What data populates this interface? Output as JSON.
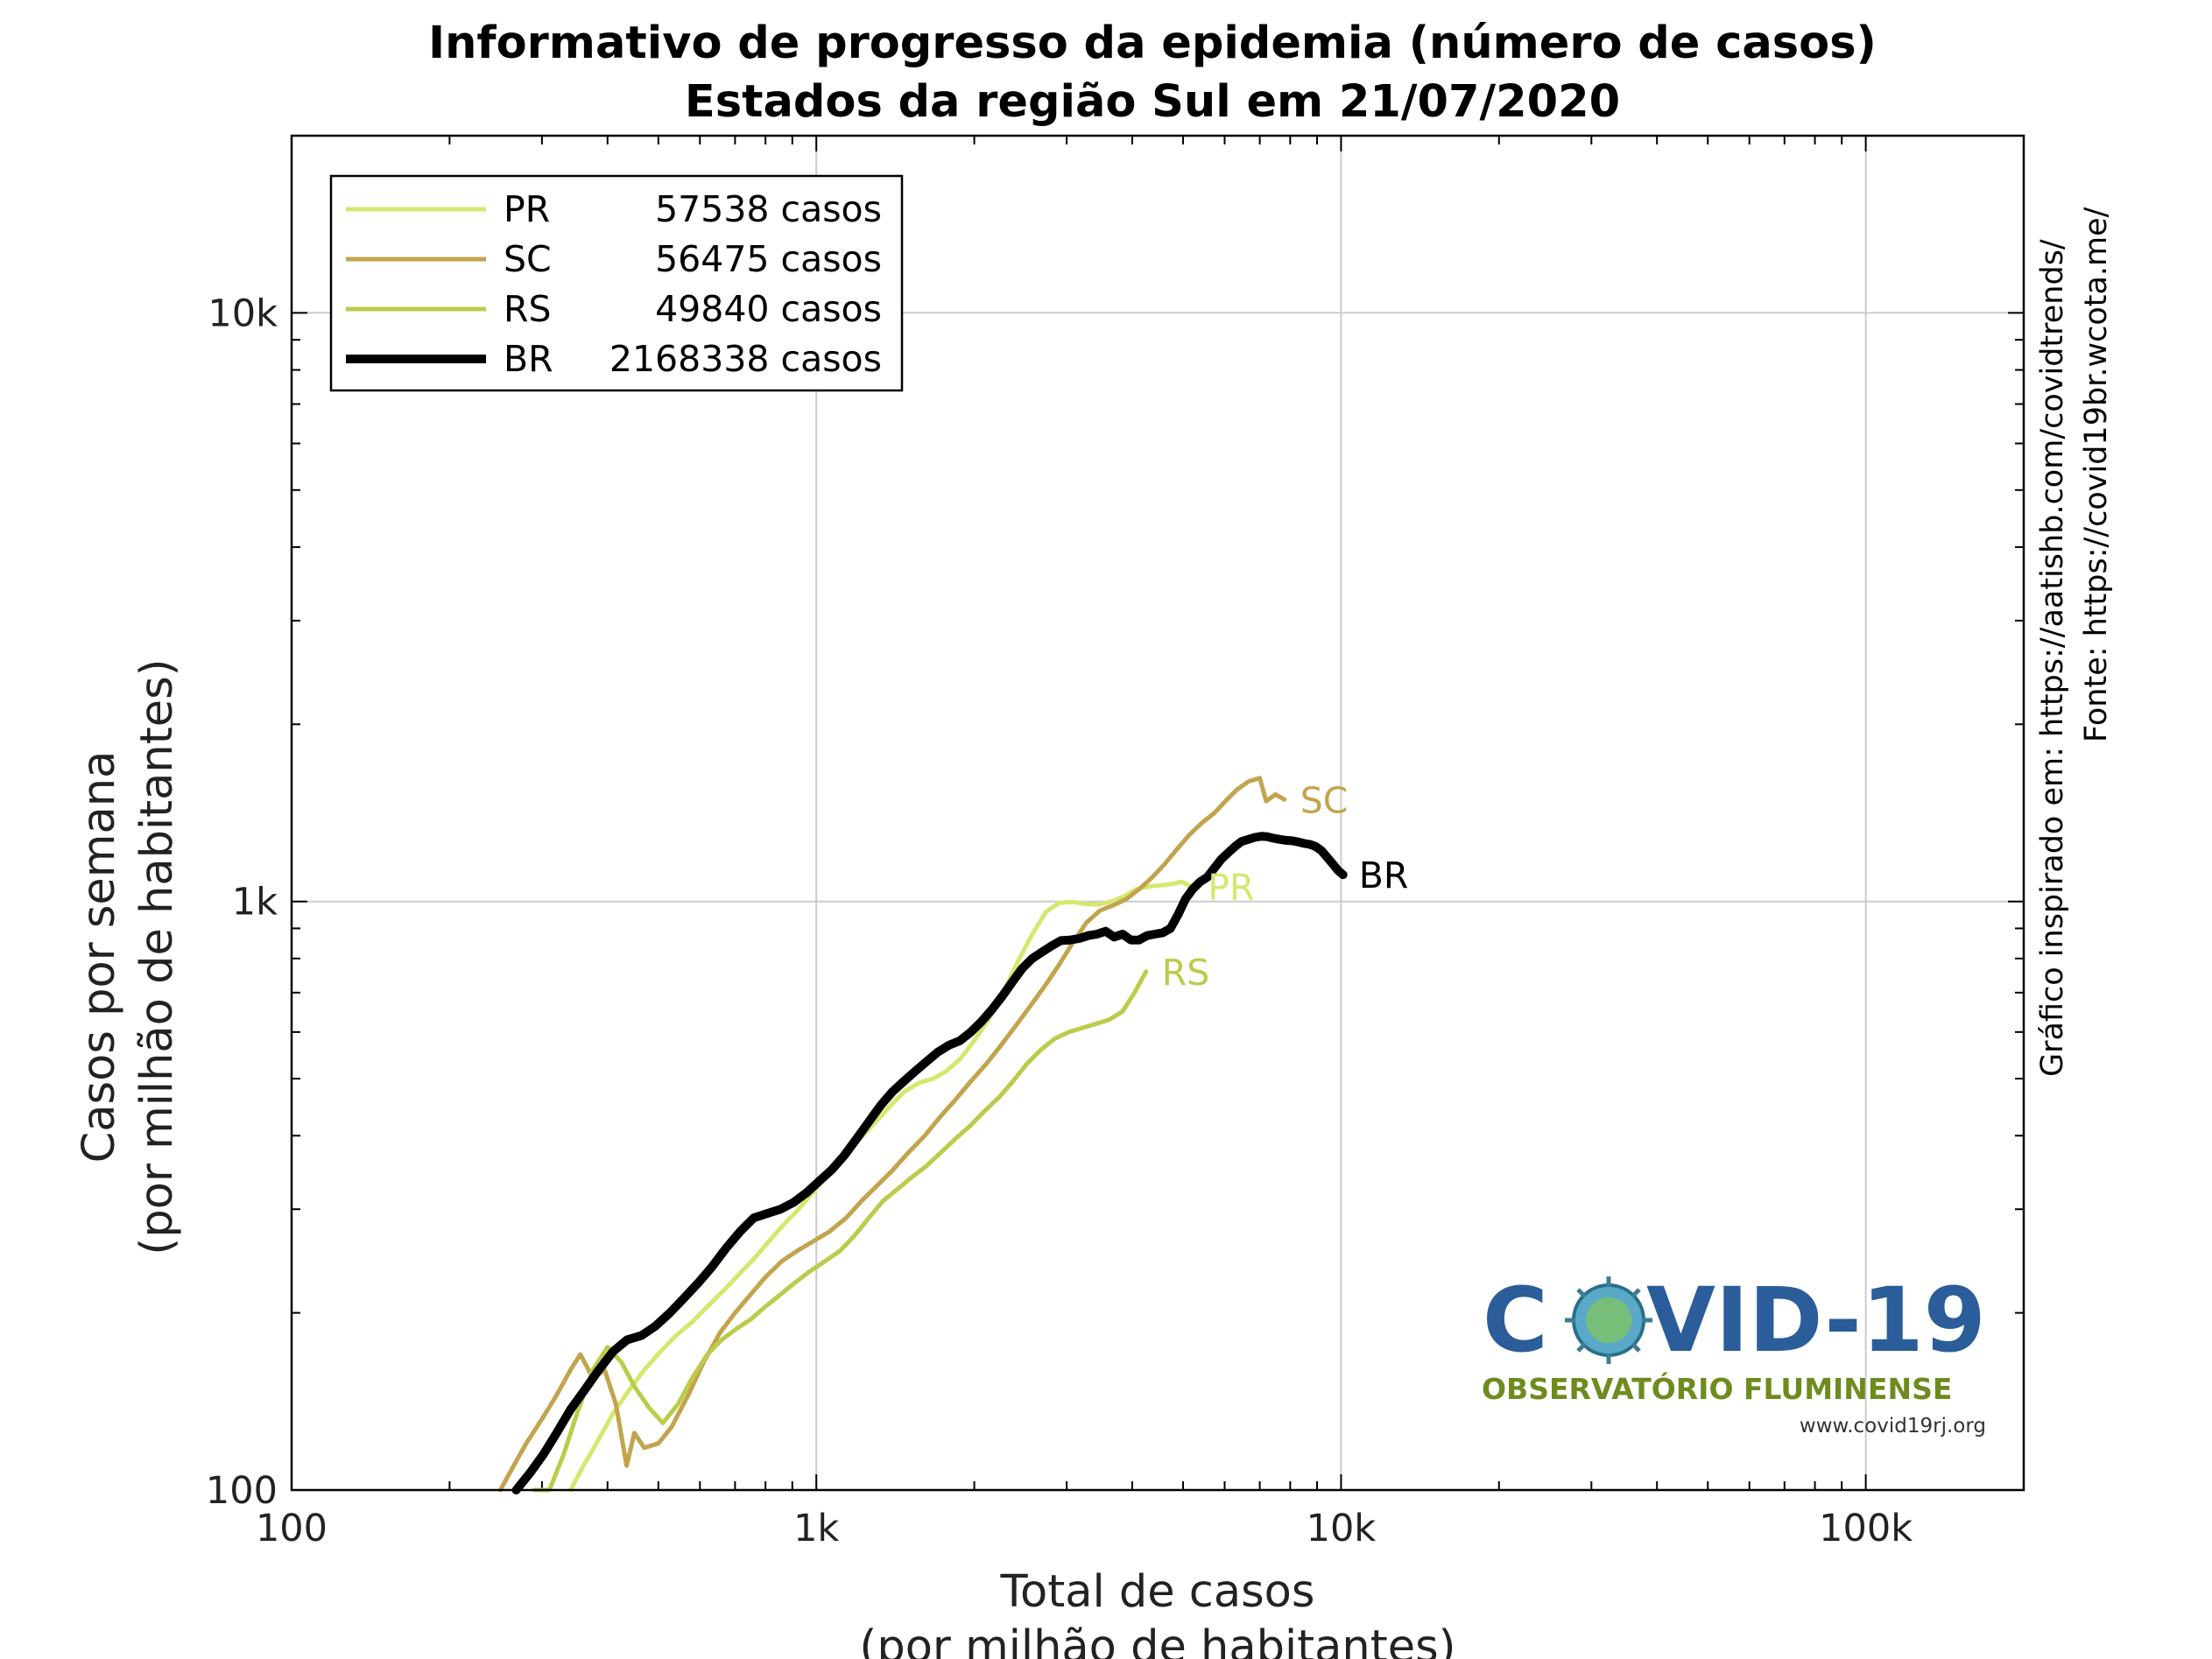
{
  "chart_data": {
    "type": "line",
    "title": "Informativo de progresso da epidemia (número de casos)",
    "subtitle": "Estados da região Sul em 21/07/2020",
    "xlabel": [
      "Total de casos",
      "(por milhão de habitantes)"
    ],
    "ylabel": [
      "Casos por semana",
      "(por milhão de habitantes)"
    ],
    "x_scale": "log",
    "y_scale": "log",
    "xlim": [
      100,
      200000
    ],
    "ylim": [
      100,
      20000
    ],
    "x_ticks": [
      {
        "value": 100,
        "label": "100"
      },
      {
        "value": 1000,
        "label": "1k"
      },
      {
        "value": 10000,
        "label": "10k"
      },
      {
        "value": 100000,
        "label": "100k"
      }
    ],
    "y_ticks": [
      {
        "value": 100,
        "label": "100"
      },
      {
        "value": 1000,
        "label": "1k"
      },
      {
        "value": 10000,
        "label": "10k"
      }
    ],
    "grid": true,
    "legend_position": "top-left",
    "side_notes": [
      "Gráfico inspirado em: https://aatishb.com/covidtrends/",
      "Fonte: https://covid19br.wcota.me/"
    ],
    "logo": {
      "title": "COVID-19",
      "subtitle": "OBSERVATÓRIO FLUMINENSE",
      "url": "www.covid19rj.org"
    },
    "series": [
      {
        "name": "PR",
        "legend_label": "57538 casos",
        "end_label": "PR",
        "color": "#d4e86e",
        "width": 5,
        "points": [
          [
            340,
            100
          ],
          [
            360,
            110
          ],
          [
            385,
            122
          ],
          [
            410,
            135
          ],
          [
            440,
            148
          ],
          [
            470,
            160
          ],
          [
            505,
            172
          ],
          [
            540,
            183
          ],
          [
            580,
            193
          ],
          [
            620,
            205
          ],
          [
            665,
            218
          ],
          [
            710,
            232
          ],
          [
            760,
            247
          ],
          [
            810,
            264
          ],
          [
            865,
            282
          ],
          [
            925,
            300
          ],
          [
            990,
            322
          ],
          [
            1060,
            345
          ],
          [
            1130,
            370
          ],
          [
            1210,
            395
          ],
          [
            1290,
            420
          ],
          [
            1380,
            448
          ],
          [
            1470,
            475
          ],
          [
            1570,
            492
          ],
          [
            1670,
            500
          ],
          [
            1770,
            515
          ],
          [
            1880,
            540
          ],
          [
            2000,
            580
          ],
          [
            2130,
            630
          ],
          [
            2270,
            700
          ],
          [
            2420,
            790
          ],
          [
            2580,
            880
          ],
          [
            2740,
            960
          ],
          [
            2900,
            995
          ],
          [
            3080,
            998
          ],
          [
            3260,
            990
          ],
          [
            3450,
            988
          ],
          [
            3650,
            1000
          ],
          [
            3860,
            1020
          ],
          [
            4080,
            1050
          ],
          [
            4300,
            1060
          ],
          [
            4520,
            1065
          ],
          [
            4740,
            1070
          ],
          [
            4970,
            1080
          ],
          [
            5200,
            1060
          ]
        ]
      },
      {
        "name": "SC",
        "legend_label": "56475 casos",
        "end_label": "SC",
        "color": "#c2a44d",
        "width": 5,
        "points": [
          [
            250,
            100
          ],
          [
            265,
            110
          ],
          [
            280,
            120
          ],
          [
            300,
            132
          ],
          [
            320,
            145
          ],
          [
            340,
            160
          ],
          [
            355,
            170
          ],
          [
            375,
            155
          ],
          [
            395,
            160
          ],
          [
            415,
            140
          ],
          [
            435,
            110
          ],
          [
            450,
            125
          ],
          [
            470,
            118
          ],
          [
            500,
            120
          ],
          [
            530,
            128
          ],
          [
            570,
            145
          ],
          [
            610,
            165
          ],
          [
            655,
            185
          ],
          [
            700,
            200
          ],
          [
            750,
            215
          ],
          [
            800,
            230
          ],
          [
            860,
            245
          ],
          [
            920,
            255
          ],
          [
            990,
            265
          ],
          [
            1060,
            275
          ],
          [
            1140,
            290
          ],
          [
            1220,
            310
          ],
          [
            1310,
            330
          ],
          [
            1400,
            350
          ],
          [
            1500,
            375
          ],
          [
            1610,
            400
          ],
          [
            1720,
            430
          ],
          [
            1840,
            460
          ],
          [
            1970,
            495
          ],
          [
            2110,
            530
          ],
          [
            2250,
            570
          ],
          [
            2400,
            615
          ],
          [
            2560,
            665
          ],
          [
            2730,
            720
          ],
          [
            2900,
            780
          ],
          [
            3080,
            850
          ],
          [
            3270,
            920
          ],
          [
            3470,
            965
          ],
          [
            3680,
            985
          ],
          [
            3900,
            1010
          ],
          [
            4130,
            1050
          ],
          [
            4370,
            1100
          ],
          [
            4620,
            1160
          ],
          [
            4880,
            1230
          ],
          [
            5150,
            1300
          ],
          [
            5430,
            1360
          ],
          [
            5720,
            1410
          ],
          [
            6020,
            1480
          ],
          [
            6340,
            1550
          ],
          [
            6670,
            1600
          ],
          [
            7000,
            1620
          ],
          [
            7200,
            1480
          ],
          [
            7500,
            1520
          ],
          [
            7800,
            1490
          ]
        ]
      },
      {
        "name": "RS",
        "legend_label": "49840 casos",
        "end_label": "RS",
        "color": "#bccb4a",
        "width": 5,
        "points": [
          [
            290,
            95
          ],
          [
            310,
            100
          ],
          [
            330,
            115
          ],
          [
            350,
            135
          ],
          [
            375,
            160
          ],
          [
            400,
            175
          ],
          [
            425,
            165
          ],
          [
            450,
            150
          ],
          [
            480,
            138
          ],
          [
            510,
            130
          ],
          [
            545,
            140
          ],
          [
            580,
            155
          ],
          [
            620,
            170
          ],
          [
            660,
            180
          ],
          [
            705,
            188
          ],
          [
            750,
            195
          ],
          [
            800,
            205
          ],
          [
            855,
            215
          ],
          [
            910,
            225
          ],
          [
            970,
            235
          ],
          [
            1040,
            245
          ],
          [
            1110,
            255
          ],
          [
            1180,
            270
          ],
          [
            1260,
            290
          ],
          [
            1340,
            310
          ],
          [
            1430,
            325
          ],
          [
            1520,
            340
          ],
          [
            1620,
            355
          ],
          [
            1730,
            375
          ],
          [
            1840,
            395
          ],
          [
            1960,
            415
          ],
          [
            2090,
            440
          ],
          [
            2230,
            465
          ],
          [
            2370,
            495
          ],
          [
            2520,
            530
          ],
          [
            2680,
            560
          ],
          [
            2850,
            585
          ],
          [
            3030,
            600
          ],
          [
            3220,
            610
          ],
          [
            3420,
            620
          ],
          [
            3620,
            630
          ],
          [
            3830,
            650
          ],
          [
            4040,
            700
          ],
          [
            4250,
            760
          ]
        ]
      },
      {
        "name": "BR",
        "legend_label": "2168338 casos",
        "end_label": "BR",
        "color": "#000000",
        "width": 10,
        "points": [
          [
            268,
            100
          ],
          [
            285,
            107
          ],
          [
            302,
            115
          ],
          [
            320,
            125
          ],
          [
            340,
            137
          ],
          [
            362,
            148
          ],
          [
            385,
            160
          ],
          [
            410,
            172
          ],
          [
            436,
            180
          ],
          [
            464,
            183
          ],
          [
            494,
            190
          ],
          [
            526,
            200
          ],
          [
            560,
            212
          ],
          [
            596,
            225
          ],
          [
            634,
            240
          ],
          [
            674,
            258
          ],
          [
            716,
            275
          ],
          [
            760,
            290
          ],
          [
            806,
            295
          ],
          [
            855,
            300
          ],
          [
            905,
            308
          ],
          [
            958,
            320
          ],
          [
            1013,
            335
          ],
          [
            1070,
            350
          ],
          [
            1130,
            370
          ],
          [
            1193,
            395
          ],
          [
            1258,
            422
          ],
          [
            1326,
            450
          ],
          [
            1396,
            475
          ],
          [
            1469,
            495
          ],
          [
            1545,
            515
          ],
          [
            1624,
            535
          ],
          [
            1706,
            555
          ],
          [
            1791,
            570
          ],
          [
            1879,
            580
          ],
          [
            1970,
            600
          ],
          [
            2064,
            625
          ],
          [
            2161,
            655
          ],
          [
            2261,
            690
          ],
          [
            2364,
            730
          ],
          [
            2470,
            770
          ],
          [
            2579,
            800
          ],
          [
            2691,
            820
          ],
          [
            2806,
            840
          ],
          [
            2924,
            858
          ],
          [
            3045,
            860
          ],
          [
            3169,
            865
          ],
          [
            3296,
            875
          ],
          [
            3426,
            880
          ],
          [
            3559,
            890
          ],
          [
            3695,
            870
          ],
          [
            3834,
            880
          ],
          [
            3976,
            860
          ],
          [
            4121,
            860
          ],
          [
            4269,
            875
          ],
          [
            4420,
            880
          ],
          [
            4574,
            885
          ],
          [
            4731,
            900
          ],
          [
            4891,
            950
          ],
          [
            5054,
            1010
          ],
          [
            5220,
            1050
          ],
          [
            5389,
            1080
          ],
          [
            5561,
            1100
          ],
          [
            5736,
            1140
          ],
          [
            5914,
            1180
          ],
          [
            6095,
            1210
          ],
          [
            6279,
            1240
          ],
          [
            6466,
            1265
          ],
          [
            6656,
            1275
          ],
          [
            6849,
            1285
          ],
          [
            7045,
            1290
          ],
          [
            7244,
            1288
          ],
          [
            7446,
            1280
          ],
          [
            7651,
            1275
          ],
          [
            7859,
            1270
          ],
          [
            8070,
            1268
          ],
          [
            8284,
            1262
          ],
          [
            8501,
            1255
          ],
          [
            8721,
            1250
          ],
          [
            8944,
            1240
          ],
          [
            9170,
            1220
          ],
          [
            9400,
            1190
          ],
          [
            9630,
            1160
          ],
          [
            9860,
            1130
          ],
          [
            10090,
            1110
          ]
        ]
      }
    ]
  }
}
